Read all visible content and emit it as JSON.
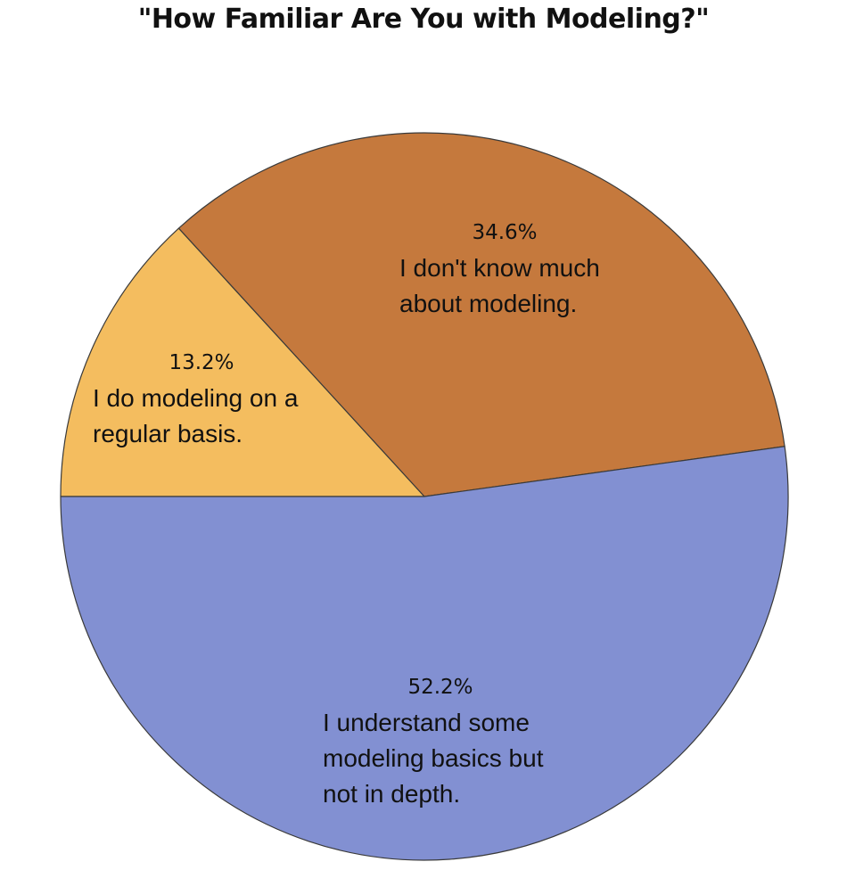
{
  "chart_data": {
    "type": "pie",
    "title": "\"How Familiar Are You with Modeling?\"",
    "slices": [
      {
        "label": "I do modeling on a regular basis.",
        "label_lines": [
          "I do modeling on a",
          "regular basis."
        ],
        "value": 13.2,
        "value_label": "13.2%",
        "color": "#F4BD5F"
      },
      {
        "label": "I don't know much about modeling.",
        "label_lines": [
          "I don't know much",
          "about modeling."
        ],
        "value": 34.6,
        "value_label": "34.6%",
        "color": "#C5793D"
      },
      {
        "label": "I understand some modeling basics but not in depth.",
        "label_lines": [
          "I understand some",
          "modeling basics but",
          "not in depth."
        ],
        "value": 52.2,
        "value_label": "52.2%",
        "color": "#8290D2"
      }
    ],
    "legend": "none",
    "labels": "inside slices"
  }
}
